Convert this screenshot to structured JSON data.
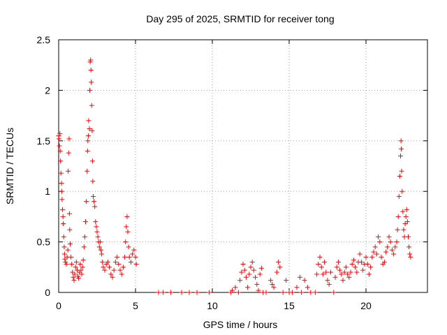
{
  "chart_data": {
    "type": "scatter",
    "title": "Day 295 of 2025, SRMTID for receiver tong",
    "xlabel": "GPS time / hours",
    "ylabel": "SRMTID / TECUs",
    "xlim": [
      0,
      24
    ],
    "ylim": [
      0,
      2.5
    ],
    "xticks": [
      0,
      5,
      10,
      15,
      20
    ],
    "yticks": [
      0,
      0.5,
      1,
      1.5,
      2,
      2.5
    ],
    "xtick_labels": [
      "0",
      "5",
      "10",
      "15",
      "20"
    ],
    "ytick_labels": [
      "0",
      "0.5",
      "1",
      "1.5",
      "2",
      "2.5"
    ],
    "grid": true,
    "marker": "+",
    "marker_color": "#ff0000",
    "series": [
      {
        "name": "SRMTID",
        "points": [
          [
            0.0,
            1.55
          ],
          [
            0.02,
            1.52
          ],
          [
            0.05,
            1.45
          ],
          [
            0.08,
            1.57
          ],
          [
            0.1,
            1.4
          ],
          [
            0.12,
            1.3
          ],
          [
            0.15,
            1.18
          ],
          [
            0.18,
            1.08
          ],
          [
            0.2,
            1.0
          ],
          [
            0.22,
            0.92
          ],
          [
            0.25,
            0.82
          ],
          [
            0.28,
            0.75
          ],
          [
            0.3,
            0.68
          ],
          [
            0.33,
            0.55
          ],
          [
            0.36,
            0.45
          ],
          [
            0.38,
            0.38
          ],
          [
            0.4,
            0.33
          ],
          [
            0.45,
            0.3
          ],
          [
            0.5,
            0.28
          ],
          [
            0.55,
            0.35
          ],
          [
            0.6,
            0.42
          ],
          [
            0.62,
            1.2
          ],
          [
            0.65,
            1.38
          ],
          [
            0.68,
            1.52
          ],
          [
            0.7,
            0.78
          ],
          [
            0.72,
            0.62
          ],
          [
            0.75,
            0.48
          ],
          [
            0.8,
            0.35
          ],
          [
            0.85,
            0.28
          ],
          [
            0.9,
            0.2
          ],
          [
            0.95,
            0.15
          ],
          [
            1.0,
            0.12
          ],
          [
            1.05,
            0.18
          ],
          [
            1.1,
            0.25
          ],
          [
            1.15,
            0.3
          ],
          [
            1.2,
            0.22
          ],
          [
            1.25,
            0.16
          ],
          [
            1.3,
            0.14
          ],
          [
            1.35,
            0.2
          ],
          [
            1.4,
            0.28
          ],
          [
            1.45,
            0.22
          ],
          [
            1.5,
            0.18
          ],
          [
            1.55,
            0.25
          ],
          [
            1.6,
            0.32
          ],
          [
            1.65,
            0.45
          ],
          [
            1.7,
            0.55
          ],
          [
            1.75,
            0.7
          ],
          [
            1.8,
            0.9
          ],
          [
            1.85,
            1.2
          ],
          [
            1.88,
            1.4
          ],
          [
            1.9,
            1.5
          ],
          [
            1.93,
            1.55
          ],
          [
            1.95,
            1.7
          ],
          [
            2.0,
            1.62
          ],
          [
            2.02,
            2.0
          ],
          [
            2.05,
            2.28
          ],
          [
            2.08,
            2.3
          ],
          [
            2.1,
            2.2
          ],
          [
            2.12,
            2.08
          ],
          [
            2.15,
            1.85
          ],
          [
            2.18,
            1.6
          ],
          [
            2.2,
            1.3
          ],
          [
            2.22,
            1.1
          ],
          [
            2.25,
            0.95
          ],
          [
            2.3,
            0.9
          ],
          [
            2.35,
            0.85
          ],
          [
            2.4,
            0.7
          ],
          [
            2.45,
            0.65
          ],
          [
            2.5,
            0.6
          ],
          [
            2.55,
            0.55
          ],
          [
            2.6,
            0.5
          ],
          [
            2.65,
            0.45
          ],
          [
            2.7,
            0.5
          ],
          [
            2.75,
            0.42
          ],
          [
            2.8,
            0.38
          ],
          [
            2.85,
            0.3
          ],
          [
            2.9,
            0.25
          ],
          [
            3.0,
            0.22
          ],
          [
            3.1,
            0.28
          ],
          [
            3.2,
            0.3
          ],
          [
            3.3,
            0.25
          ],
          [
            3.4,
            0.18
          ],
          [
            3.5,
            0.15
          ],
          [
            3.6,
            0.22
          ],
          [
            3.7,
            0.3
          ],
          [
            3.8,
            0.35
          ],
          [
            3.9,
            0.28
          ],
          [
            4.0,
            0.22
          ],
          [
            4.1,
            0.18
          ],
          [
            4.2,
            0.25
          ],
          [
            4.3,
            0.35
          ],
          [
            4.35,
            0.5
          ],
          [
            4.4,
            0.65
          ],
          [
            4.45,
            0.75
          ],
          [
            4.5,
            0.6
          ],
          [
            4.55,
            0.45
          ],
          [
            4.6,
            0.35
          ],
          [
            4.7,
            0.3
          ],
          [
            4.8,
            0.38
          ],
          [
            4.9,
            0.42
          ],
          [
            5.0,
            0.35
          ],
          [
            5.05,
            0.28
          ],
          [
            6.5,
            0.0
          ],
          [
            6.8,
            0.0
          ],
          [
            7.3,
            0.0
          ],
          [
            8.0,
            0.0
          ],
          [
            8.5,
            0.0
          ],
          [
            9.0,
            0.0
          ],
          [
            9.8,
            0.0
          ],
          [
            11.2,
            0.0
          ],
          [
            11.3,
            0.02
          ],
          [
            11.5,
            0.05
          ],
          [
            11.7,
            0.0
          ],
          [
            11.8,
            0.12
          ],
          [
            11.9,
            0.2
          ],
          [
            12.0,
            0.28
          ],
          [
            12.1,
            0.22
          ],
          [
            12.2,
            0.15
          ],
          [
            12.3,
            0.05
          ],
          [
            12.4,
            0.18
          ],
          [
            12.5,
            0.25
          ],
          [
            12.6,
            0.3
          ],
          [
            12.7,
            0.22
          ],
          [
            12.8,
            0.15
          ],
          [
            12.9,
            0.08
          ],
          [
            13.0,
            0.02
          ],
          [
            13.1,
            0.18
          ],
          [
            13.2,
            0.24
          ],
          [
            13.3,
            0.0
          ],
          [
            13.5,
            0.0
          ],
          [
            13.8,
            0.12
          ],
          [
            13.9,
            0.08
          ],
          [
            14.0,
            0.05
          ],
          [
            14.2,
            0.2
          ],
          [
            14.3,
            0.3
          ],
          [
            14.4,
            0.25
          ],
          [
            14.6,
            0.0
          ],
          [
            14.8,
            0.12
          ],
          [
            15.0,
            0.0
          ],
          [
            15.2,
            0.0
          ],
          [
            15.5,
            0.05
          ],
          [
            15.7,
            0.15
          ],
          [
            15.8,
            0.0
          ],
          [
            16.0,
            0.12
          ],
          [
            16.2,
            0.05
          ],
          [
            16.4,
            0.0
          ],
          [
            16.7,
            0.0
          ],
          [
            16.8,
            0.18
          ],
          [
            16.9,
            0.28
          ],
          [
            17.0,
            0.35
          ],
          [
            17.1,
            0.25
          ],
          [
            17.2,
            0.18
          ],
          [
            17.3,
            0.3
          ],
          [
            17.4,
            0.2
          ],
          [
            17.5,
            0.12
          ],
          [
            17.6,
            0.08
          ],
          [
            17.7,
            0.2
          ],
          [
            17.9,
            0.0
          ],
          [
            18.0,
            0.15
          ],
          [
            18.1,
            0.25
          ],
          [
            18.2,
            0.3
          ],
          [
            18.3,
            0.22
          ],
          [
            18.4,
            0.18
          ],
          [
            18.5,
            0.12
          ],
          [
            18.6,
            0.2
          ],
          [
            18.7,
            0.25
          ],
          [
            18.8,
            0.18
          ],
          [
            18.9,
            0.15
          ],
          [
            19.0,
            0.2
          ],
          [
            19.1,
            0.28
          ],
          [
            19.2,
            0.32
          ],
          [
            19.3,
            0.25
          ],
          [
            19.4,
            0.2
          ],
          [
            19.5,
            0.3
          ],
          [
            19.6,
            0.38
          ],
          [
            19.7,
            0.3
          ],
          [
            19.8,
            0.22
          ],
          [
            19.9,
            0.28
          ],
          [
            20.0,
            0.35
          ],
          [
            20.1,
            0.28
          ],
          [
            20.2,
            0.18
          ],
          [
            20.3,
            0.25
          ],
          [
            20.4,
            0.35
          ],
          [
            20.5,
            0.4
          ],
          [
            20.6,
            0.45
          ],
          [
            20.7,
            0.38
          ],
          [
            20.8,
            0.55
          ],
          [
            20.9,
            0.5
          ],
          [
            21.0,
            0.35
          ],
          [
            21.1,
            0.28
          ],
          [
            21.2,
            0.3
          ],
          [
            21.3,
            0.4
          ],
          [
            21.4,
            0.45
          ],
          [
            21.5,
            0.55
          ],
          [
            21.6,
            0.5
          ],
          [
            21.7,
            0.42
          ],
          [
            21.8,
            0.38
          ],
          [
            21.9,
            0.45
          ],
          [
            22.0,
            0.5
          ],
          [
            22.05,
            0.62
          ],
          [
            22.1,
            0.75
          ],
          [
            22.15,
            0.95
          ],
          [
            22.2,
            1.15
          ],
          [
            22.25,
            1.35
          ],
          [
            22.28,
            1.5
          ],
          [
            22.3,
            1.42
          ],
          [
            22.32,
            1.2
          ],
          [
            22.35,
            1.0
          ],
          [
            22.4,
            0.8
          ],
          [
            22.45,
            0.62
          ],
          [
            22.5,
            0.55
          ],
          [
            22.55,
            0.68
          ],
          [
            22.6,
            0.75
          ],
          [
            22.65,
            0.82
          ],
          [
            22.7,
            0.7
          ],
          [
            22.75,
            0.55
          ],
          [
            22.8,
            0.45
          ],
          [
            22.85,
            0.38
          ],
          [
            22.9,
            0.35
          ]
        ]
      }
    ]
  }
}
